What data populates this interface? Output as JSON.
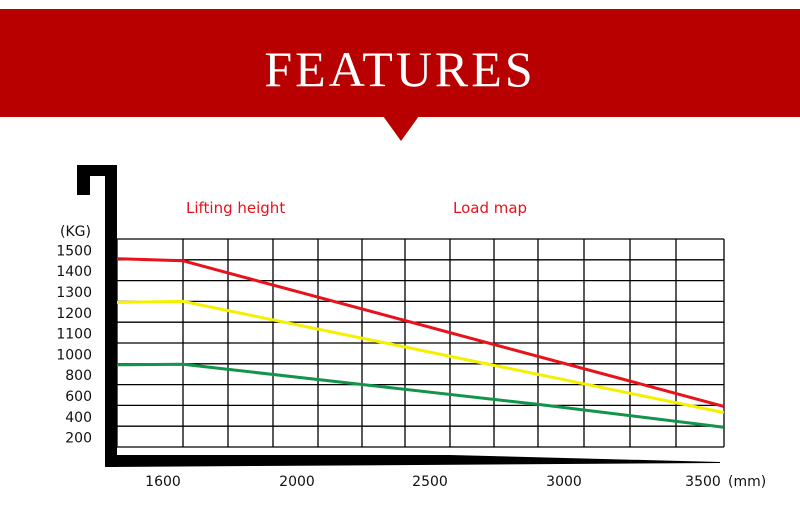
{
  "header": {
    "title": "FEATURES"
  },
  "colors": {
    "banner": "#b80000",
    "red": "#e8121c",
    "yellow": "#f5f000",
    "green": "#12944a"
  },
  "chart_data": {
    "type": "line",
    "title": "Load map",
    "legend_title": "Lifting height",
    "ylabel": "(KG)",
    "xunit": "(mm)",
    "y_ticks": [
      "1500",
      "1400",
      "1300",
      "1200",
      "1100",
      "1000",
      "800",
      "600",
      "400",
      "200"
    ],
    "x_ticks": [
      "1600",
      "2000",
      "2500",
      "3000",
      "3500"
    ],
    "grid": true,
    "series": [
      {
        "name": "red",
        "color": "#e8121c",
        "points": [
          [
            1460,
            1460
          ],
          [
            1660,
            1450
          ],
          [
            3575,
            500
          ]
        ]
      },
      {
        "name": "yellow",
        "color": "#f5f000",
        "points": [
          [
            1460,
            1250
          ],
          [
            1660,
            1255
          ],
          [
            3575,
            440
          ]
        ]
      },
      {
        "name": "green",
        "color": "#12944a",
        "points": [
          [
            1460,
            900
          ],
          [
            1660,
            905
          ],
          [
            2900,
            520
          ],
          [
            3575,
            300
          ]
        ]
      }
    ]
  }
}
